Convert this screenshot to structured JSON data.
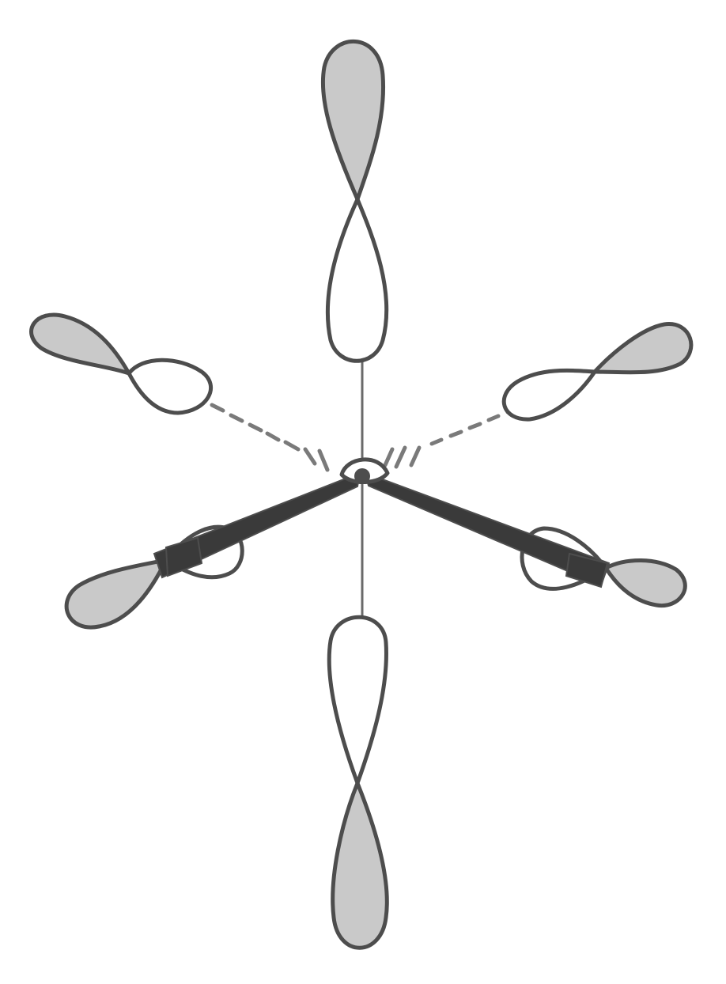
{
  "diagram": {
    "structure": "octahedral",
    "orbital_count": 6,
    "colors": {
      "background": "#ffffff",
      "outline": "#4d4d4d",
      "shaded_lobe": "#c9c9c9",
      "open_lobe": "#ffffff",
      "axis": "#6a6a6a",
      "wedge": "#3a3a3a",
      "dashed_bond": "#7a7a7a"
    }
  }
}
